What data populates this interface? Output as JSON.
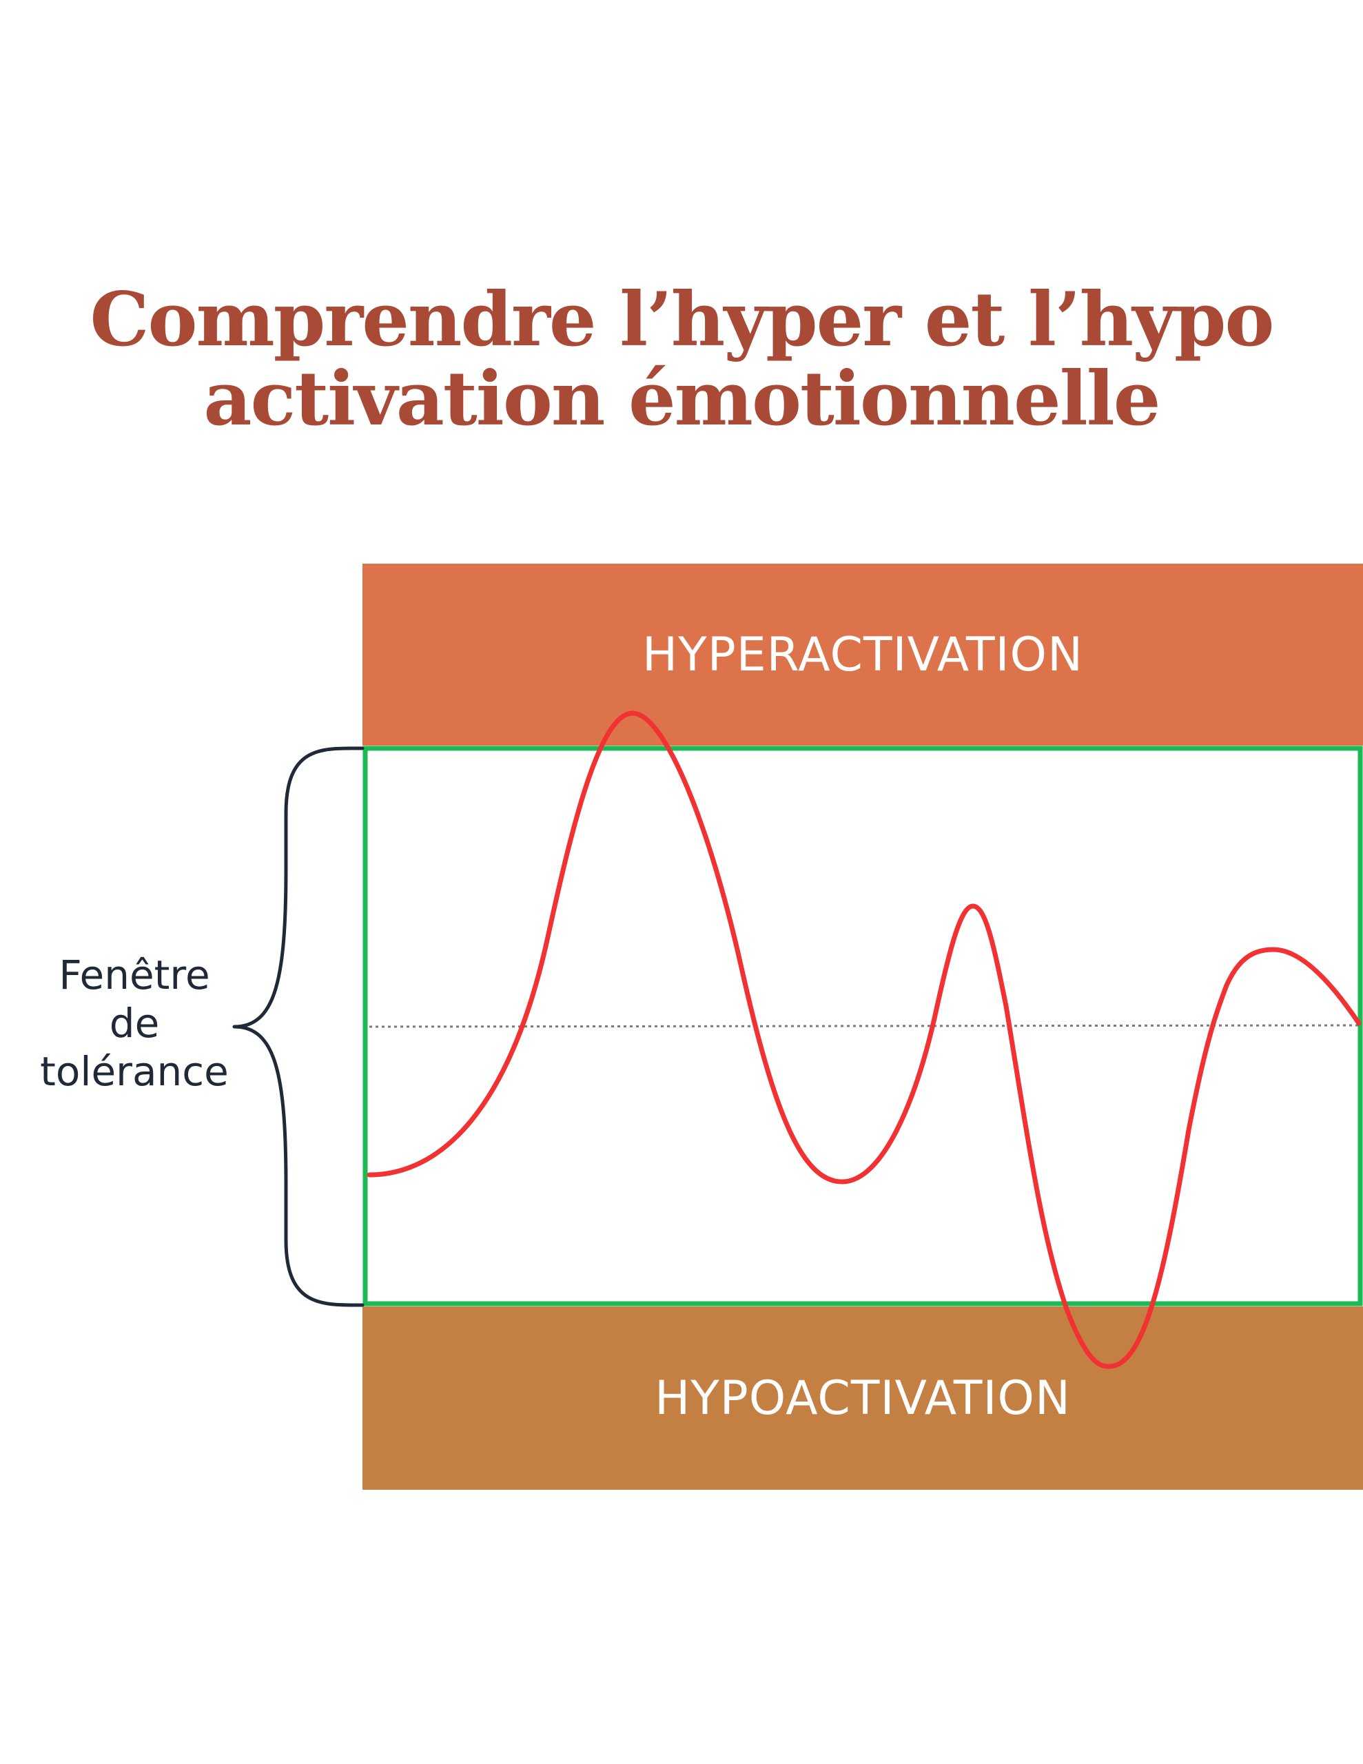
{
  "title": {
    "line1": "Comprendre l’hyper et l’hypo",
    "line2": "activation émotionnelle"
  },
  "bands": {
    "hyper": {
      "label": "HYPERACTIVATION",
      "color": "#DC734A"
    },
    "hypo": {
      "label": "HYPOACTIVATION",
      "color": "#C47F43"
    }
  },
  "window": {
    "label_lines": [
      "Fenêtre",
      "de",
      "tolérance"
    ],
    "border_color": "#1DB954"
  },
  "curve": {
    "color": "#F23232"
  },
  "colors": {
    "title": "#A84A36",
    "text": "#1F2937"
  }
}
